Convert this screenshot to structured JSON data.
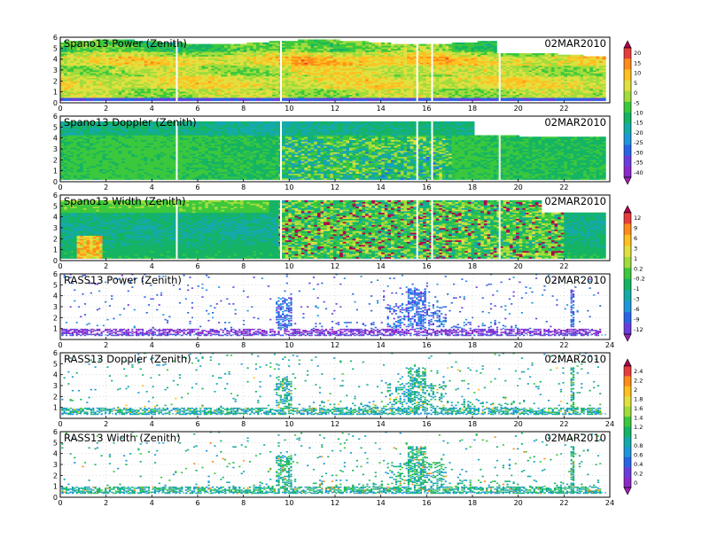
{
  "chart_data": [
    {
      "type": "heatmap",
      "title": "Spano13 Power (Zenith)",
      "date": "02MAR2010",
      "x_ticks": [
        "0",
        "2",
        "4",
        "6",
        "8",
        "10",
        "12",
        "14",
        "16",
        "18",
        "20",
        "22"
      ],
      "y_ticks": [
        "0",
        "1",
        "2",
        "3",
        "4",
        "5",
        "6"
      ],
      "xlim": [
        0,
        24
      ],
      "ylim": [
        0,
        6
      ],
      "colorbar": "cb1",
      "mode": "dense",
      "field": "sp_power",
      "top": "4.5-5.8"
    },
    {
      "type": "heatmap",
      "title": "Spano13 Doppler (Zenith)",
      "date": "02MAR2010",
      "x_ticks": [
        "0",
        "2",
        "4",
        "6",
        "8",
        "10",
        "12",
        "14",
        "16",
        "18",
        "20",
        "22"
      ],
      "y_ticks": [
        "0",
        "1",
        "2",
        "3",
        "4",
        "5",
        "6"
      ],
      "xlim": [
        0,
        24
      ],
      "ylim": [
        0,
        6
      ],
      "colorbar": "cb1",
      "mode": "dense",
      "field": "sp_doppler"
    },
    {
      "type": "heatmap",
      "title": "Spano13 Width (Zenith)",
      "date": "02MAR2010",
      "x_ticks": [
        "0",
        "2",
        "4",
        "6",
        "8",
        "10",
        "12",
        "14",
        "16",
        "18",
        "20",
        "22"
      ],
      "y_ticks": [
        "0",
        "1",
        "2",
        "3",
        "4",
        "5",
        "6"
      ],
      "xlim": [
        0,
        24
      ],
      "ylim": [
        0,
        6
      ],
      "colorbar": "cb2",
      "mode": "dense",
      "field": "sp_width"
    },
    {
      "type": "scatter",
      "title": "RASS13 Power (Zenith)",
      "date": "02MAR2010",
      "x_ticks": [
        "0",
        "2",
        "4",
        "6",
        "8",
        "10",
        "12",
        "14",
        "16",
        "18",
        "20",
        "22",
        "24"
      ],
      "y_ticks": [
        "1",
        "2",
        "3",
        "4",
        "5",
        "6"
      ],
      "xlim": [
        0,
        24
      ],
      "ylim": [
        0,
        6
      ],
      "colorbar": "cb2",
      "mode": "sparse",
      "field": "rass_power"
    },
    {
      "type": "scatter",
      "title": "RASS13 Doppler (Zenith)",
      "date": "02MAR2010",
      "x_ticks": [
        "0",
        "2",
        "4",
        "6",
        "8",
        "10",
        "12",
        "14",
        "16",
        "18",
        "20",
        "22",
        "24"
      ],
      "y_ticks": [
        "1",
        "2",
        "3",
        "4",
        "5",
        "6"
      ],
      "xlim": [
        0,
        24
      ],
      "ylim": [
        0,
        6
      ],
      "colorbar": "cb3",
      "mode": "sparse",
      "field": "rass_doppler"
    },
    {
      "type": "scatter",
      "title": "RASS13 Width (Zenith)",
      "date": "02MAR2010",
      "x_ticks": [
        "0",
        "2",
        "4",
        "6",
        "8",
        "10",
        "12",
        "14",
        "16",
        "18",
        "20",
        "22",
        "24"
      ],
      "y_ticks": [
        "0",
        "1",
        "2",
        "3",
        "4",
        "5",
        "6"
      ],
      "xlim": [
        0,
        24
      ],
      "ylim": [
        0,
        6
      ],
      "colorbar": "cb3",
      "mode": "sparse",
      "field": "rass_width"
    }
  ],
  "colorbars": {
    "cb1": {
      "labels": [
        "20",
        "15",
        "10",
        "5",
        "0",
        "-5",
        "-10",
        "-15",
        "-20",
        "-25",
        "-30",
        "-35",
        "-40"
      ],
      "colors": [
        "#b0004f",
        "#e83c3c",
        "#ff8c1a",
        "#ffc020",
        "#e0e040",
        "#a0dc3c",
        "#3cc83c",
        "#14b464",
        "#14aaaa",
        "#1e96dc",
        "#2864e6",
        "#6a3cdc",
        "#8c28c8",
        "#a020b4"
      ]
    },
    "cb2": {
      "labels": [
        "12",
        "9",
        "6",
        "3",
        "1",
        "0.2",
        "-0.2",
        "-1",
        "-3",
        "-6",
        "-9",
        "-12"
      ],
      "colors": [
        "#b0004f",
        "#e83c3c",
        "#ff8c1a",
        "#ffc020",
        "#e0e040",
        "#a0dc3c",
        "#3cc83c",
        "#14b464",
        "#14aaaa",
        "#1e96dc",
        "#2864e6",
        "#6a3cdc",
        "#a020b4"
      ]
    },
    "cb3": {
      "labels": [
        "2.4",
        "2.2",
        "2",
        "1.8",
        "1.6",
        "1.4",
        "1.2",
        "1",
        "0.8",
        "0.6",
        "0.4",
        "0.2",
        "0"
      ],
      "colors": [
        "#b0004f",
        "#e83c3c",
        "#ff8c1a",
        "#ffc020",
        "#e0e040",
        "#a0dc3c",
        "#3cc83c",
        "#14b464",
        "#14aaaa",
        "#1e96dc",
        "#2864e6",
        "#6a3cdc",
        "#8c28c8",
        "#a020b4"
      ]
    }
  }
}
